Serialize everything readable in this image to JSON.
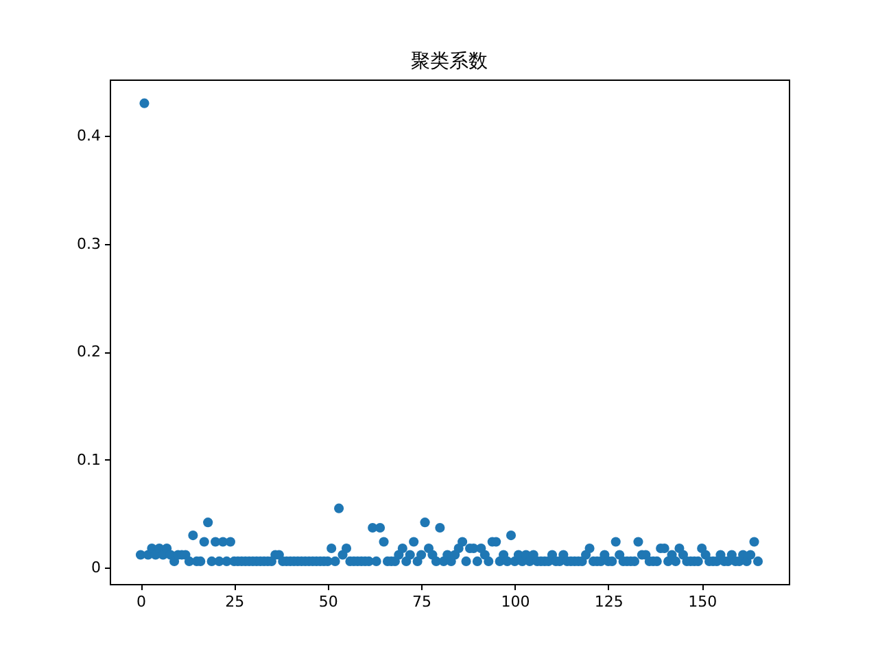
{
  "chart_data": {
    "type": "scatter",
    "title": "聚类系数",
    "x": [
      0,
      1,
      2,
      3,
      4,
      5,
      6,
      7,
      8,
      9,
      10,
      11,
      12,
      13,
      14,
      15,
      16,
      17,
      18,
      19,
      20,
      21,
      22,
      23,
      24,
      25,
      26,
      27,
      28,
      29,
      30,
      31,
      32,
      33,
      34,
      35,
      36,
      37,
      38,
      39,
      40,
      41,
      42,
      43,
      44,
      45,
      46,
      47,
      48,
      49,
      50,
      51,
      52,
      53,
      54,
      55,
      56,
      57,
      58,
      59,
      60,
      61,
      62,
      63,
      64,
      65,
      66,
      67,
      68,
      69,
      70,
      71,
      72,
      73,
      74,
      75,
      76,
      77,
      78,
      79,
      80,
      81,
      82,
      83,
      84,
      85,
      86,
      87,
      88,
      89,
      90,
      91,
      92,
      93,
      94,
      95,
      96,
      97,
      98,
      99,
      100,
      101,
      102,
      103,
      104,
      105,
      106,
      107,
      108,
      109,
      110,
      111,
      112,
      113,
      114,
      115,
      116,
      117,
      118,
      119,
      120,
      121,
      122,
      123,
      124,
      125,
      126,
      127,
      128,
      129,
      130,
      131,
      132,
      133,
      134,
      135,
      136,
      137,
      138,
      139,
      140,
      141,
      142,
      143,
      144,
      145,
      146,
      147,
      148,
      149,
      150,
      151,
      152,
      153,
      154,
      155,
      156,
      157,
      158,
      159,
      160,
      161,
      162,
      163,
      164,
      165
    ],
    "series": [
      {
        "color": "#1f77b4",
        "values": [
          0.012,
          0.43,
          0.012,
          0.018,
          0.012,
          0.018,
          0.012,
          0.018,
          0.012,
          0.006,
          0.012,
          0.012,
          0.012,
          0.006,
          0.03,
          0.006,
          0.006,
          0.024,
          0.042,
          0.006,
          0.024,
          0.006,
          0.024,
          0.006,
          0.024,
          0.006,
          0.006,
          0.006,
          0.006,
          0.006,
          0.006,
          0.006,
          0.006,
          0.006,
          0.006,
          0.006,
          0.012,
          0.012,
          0.006,
          0.006,
          0.006,
          0.006,
          0.006,
          0.006,
          0.006,
          0.006,
          0.006,
          0.006,
          0.006,
          0.006,
          0.006,
          0.018,
          0.006,
          0.055,
          0.012,
          0.018,
          0.006,
          0.006,
          0.006,
          0.006,
          0.006,
          0.006,
          0.037,
          0.006,
          0.037,
          0.024,
          0.006,
          0.006,
          0.006,
          0.012,
          0.018,
          0.006,
          0.012,
          0.024,
          0.006,
          0.012,
          0.042,
          0.018,
          0.012,
          0.006,
          0.037,
          0.006,
          0.012,
          0.006,
          0.012,
          0.018,
          0.024,
          0.006,
          0.018,
          0.018,
          0.006,
          0.018,
          0.012,
          0.006,
          0.024,
          0.024,
          0.006,
          0.012,
          0.006,
          0.03,
          0.006,
          0.012,
          0.006,
          0.012,
          0.006,
          0.012,
          0.006,
          0.006,
          0.006,
          0.006,
          0.012,
          0.006,
          0.006,
          0.012,
          0.006,
          0.006,
          0.006,
          0.006,
          0.006,
          0.012,
          0.018,
          0.006,
          0.006,
          0.006,
          0.012,
          0.006,
          0.006,
          0.024,
          0.012,
          0.006,
          0.006,
          0.006,
          0.006,
          0.024,
          0.012,
          0.012,
          0.006,
          0.006,
          0.006,
          0.018,
          0.018,
          0.006,
          0.012,
          0.006,
          0.018,
          0.012,
          0.006,
          0.006,
          0.006,
          0.006,
          0.018,
          0.012,
          0.006,
          0.006,
          0.006,
          0.012,
          0.006,
          0.006,
          0.012,
          0.006,
          0.006,
          0.012,
          0.006,
          0.012,
          0.024,
          0.006
        ]
      }
    ],
    "xlim": [
      -8.25,
      173.25
    ],
    "xticks": [
      0,
      25,
      50,
      75,
      100,
      125,
      150
    ],
    "ylim": [
      -0.015,
      0.452
    ],
    "yticks": [
      0,
      0.1,
      0.2,
      0.3,
      0.4
    ],
    "marker": "circle",
    "grid": false
  }
}
